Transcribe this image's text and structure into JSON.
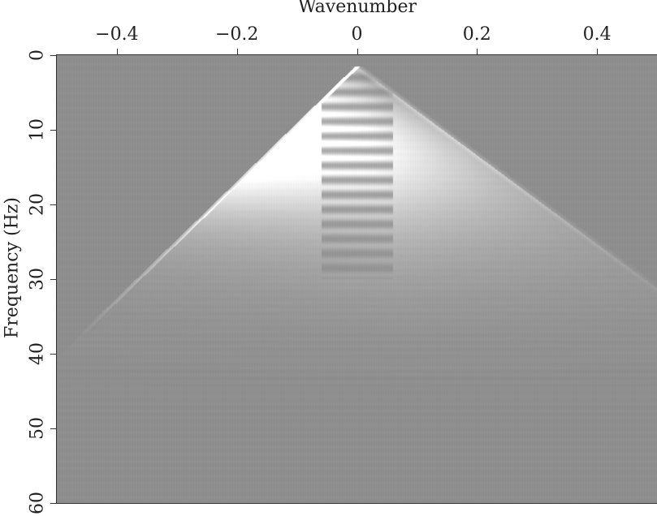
{
  "chart_data": {
    "type": "heatmap",
    "title": "",
    "xlabel": "Wavenumber",
    "ylabel": "Frequency (Hz)",
    "xlim": [
      -0.5,
      0.5
    ],
    "ylim": [
      0,
      60
    ],
    "y_inverted": true,
    "x_axis_position": "top",
    "x_ticks": [
      {
        "value": -0.4,
        "label": "−0.4"
      },
      {
        "value": -0.2,
        "label": "−0.2"
      },
      {
        "value": 0,
        "label": "0"
      },
      {
        "value": 0.2,
        "label": "0.2"
      },
      {
        "value": 0.4,
        "label": "0.4"
      }
    ],
    "y_ticks": [
      {
        "value": 0,
        "label": "0"
      },
      {
        "value": 10,
        "label": "10"
      },
      {
        "value": 20,
        "label": "20"
      },
      {
        "value": 30,
        "label": "30"
      },
      {
        "value": 40,
        "label": "40"
      },
      {
        "value": 50,
        "label": "50"
      },
      {
        "value": 60,
        "label": "60"
      }
    ],
    "colormap": "grayscale",
    "background_color": "#8f8f8f",
    "grid": false,
    "legend": "none"
  }
}
